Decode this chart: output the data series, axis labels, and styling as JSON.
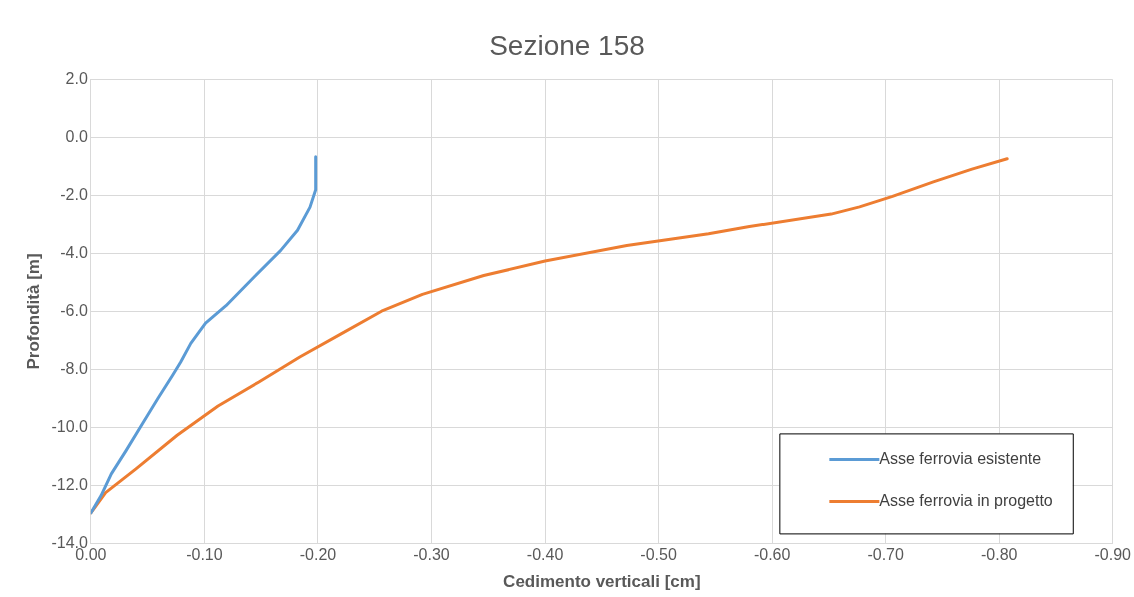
{
  "chart_data": {
    "type": "line",
    "title": "Sezione 158",
    "xlabel": "Cedimento verticali [cm]",
    "ylabel": "Profondità [m]",
    "xlim": [
      0,
      -0.9
    ],
    "xticks": [
      {
        "value": 0,
        "label": "0.00"
      },
      {
        "value": -0.1,
        "label": "-0.10"
      },
      {
        "value": -0.2,
        "label": "-0.20"
      },
      {
        "value": -0.3,
        "label": "-0.30"
      },
      {
        "value": -0.4,
        "label": "-0.40"
      },
      {
        "value": -0.5,
        "label": "-0.50"
      },
      {
        "value": -0.6,
        "label": "-0.60"
      },
      {
        "value": -0.7,
        "label": "-0.70"
      },
      {
        "value": -0.8,
        "label": "-0.80"
      },
      {
        "value": -0.9,
        "label": "-0.90"
      }
    ],
    "ylim": [
      -14,
      2
    ],
    "yticks": [
      {
        "value": 2,
        "label": "2.0"
      },
      {
        "value": 0,
        "label": "0.0"
      },
      {
        "value": -2,
        "label": "-2.0"
      },
      {
        "value": -4,
        "label": "-4.0"
      },
      {
        "value": -6,
        "label": "-6.0"
      },
      {
        "value": -8,
        "label": "-8.0"
      },
      {
        "value": -10,
        "label": "-10.0"
      },
      {
        "value": -12,
        "label": "-12.0"
      },
      {
        "value": -14,
        "label": "-14.0"
      }
    ],
    "grid": true,
    "legend": "bottom right",
    "marker": "none",
    "line_style": "solid",
    "series": [
      {
        "name": "Asse ferrovia esistente",
        "color": "#5b9bd5",
        "x": [
          -0.198,
          -0.198,
          -0.193,
          -0.182,
          -0.167,
          -0.144,
          -0.119,
          -0.101,
          -0.088,
          -0.079,
          -0.072,
          -0.059,
          -0.045,
          -0.031,
          -0.018,
          -0.009,
          0
        ],
        "values": [
          -0.66,
          -1.8,
          -2.4,
          -3.2,
          -3.9,
          -4.8,
          -5.8,
          -6.4,
          -7.1,
          -7.75,
          -8.2,
          -9.0,
          -9.9,
          -10.8,
          -11.6,
          -12.35,
          -12.95
        ]
      },
      {
        "name": "Asse ferrovia in progetto",
        "color": "#ed7d31",
        "x": [
          -0.807,
          -0.776,
          -0.742,
          -0.706,
          -0.677,
          -0.652,
          -0.58,
          -0.544,
          -0.472,
          -0.4,
          -0.346,
          -0.292,
          -0.256,
          -0.22,
          -0.184,
          -0.148,
          -0.112,
          -0.076,
          -0.04,
          -0.013,
          0
        ],
        "values": [
          -0.73,
          -1.09,
          -1.53,
          -2.03,
          -2.39,
          -2.64,
          -3.07,
          -3.32,
          -3.72,
          -4.26,
          -4.76,
          -5.41,
          -5.99,
          -6.78,
          -7.57,
          -8.43,
          -9.26,
          -10.27,
          -11.42,
          -12.25,
          -12.95
        ]
      }
    ]
  }
}
